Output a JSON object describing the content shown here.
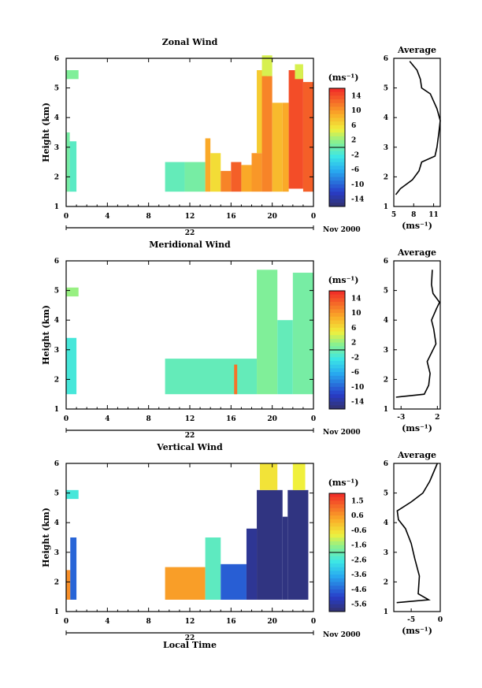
{
  "figure": {
    "x_axis_label": "Local Time",
    "date_label": "Nov 2000",
    "day_label": "22"
  },
  "chart_data": [
    {
      "type": "heatmap",
      "title": "Zonal Wind",
      "ylabel": "Height (km)",
      "ylim": [
        1,
        6
      ],
      "yticks": [
        "1",
        "2",
        "3",
        "4",
        "5",
        "6"
      ],
      "xlim": [
        0,
        24
      ],
      "xticks": [
        "0",
        "4",
        "8",
        "12",
        "16",
        "20",
        "0"
      ],
      "xlabel": "Local Time",
      "colorbar": {
        "label": "(ms⁻¹)",
        "min": -16,
        "max": 16,
        "ticks": [
          "14",
          "10",
          "6",
          "2",
          "-2",
          "-6",
          "-10",
          "-14"
        ]
      },
      "avg": {
        "title": "Average",
        "xlabel": "(ms⁻¹)",
        "xlim": [
          5,
          12
        ],
        "xticks": [
          "5",
          "8",
          "11"
        ],
        "profile": [
          [
            5.3,
            1.4
          ],
          [
            6.0,
            1.6
          ],
          [
            7.8,
            1.9
          ],
          [
            8.8,
            2.2
          ],
          [
            9.2,
            2.5
          ],
          [
            11.2,
            2.7
          ],
          [
            11.5,
            3.0
          ],
          [
            11.8,
            3.5
          ],
          [
            12.0,
            3.9
          ],
          [
            11.5,
            4.3
          ],
          [
            10.5,
            4.8
          ],
          [
            9.2,
            5.0
          ],
          [
            9.0,
            5.3
          ],
          [
            8.5,
            5.6
          ],
          [
            7.4,
            5.9
          ]
        ]
      },
      "blocks": [
        {
          "t0": 0.0,
          "t1": 0.35,
          "h0": 1.5,
          "h1": 3.5,
          "v": 0.5
        },
        {
          "t0": 0.35,
          "t1": 1.0,
          "h0": 1.5,
          "h1": 3.2,
          "v": -1
        },
        {
          "t0": 0.0,
          "t1": 1.2,
          "h0": 5.3,
          "h1": 5.6,
          "v": 1
        },
        {
          "t0": 9.6,
          "t1": 11.5,
          "h0": 1.5,
          "h1": 2.5,
          "v": -0.5
        },
        {
          "t0": 11.5,
          "t1": 13.5,
          "h0": 1.5,
          "h1": 2.5,
          "v": 0.5
        },
        {
          "t0": 13.5,
          "t1": 14.0,
          "h0": 1.5,
          "h1": 3.3,
          "v": 9
        },
        {
          "t0": 14.0,
          "t1": 15.0,
          "h0": 1.5,
          "h1": 2.8,
          "v": 6
        },
        {
          "t0": 15.0,
          "t1": 16.0,
          "h0": 1.5,
          "h1": 2.2,
          "v": 11
        },
        {
          "t0": 16.0,
          "t1": 17.0,
          "h0": 1.5,
          "h1": 2.5,
          "v": 13
        },
        {
          "t0": 17.0,
          "t1": 18.0,
          "h0": 1.5,
          "h1": 2.4,
          "v": 9
        },
        {
          "t0": 18.0,
          "t1": 19.0,
          "h0": 1.5,
          "h1": 2.8,
          "v": 10
        },
        {
          "t0": 18.5,
          "t1": 19.5,
          "h0": 2.8,
          "h1": 5.6,
          "v": 7
        },
        {
          "t0": 19.0,
          "t1": 20.0,
          "h0": 1.5,
          "h1": 5.4,
          "v": 11
        },
        {
          "t0": 19.0,
          "t1": 20.0,
          "h0": 5.4,
          "h1": 6.1,
          "v": 4
        },
        {
          "t0": 20.0,
          "t1": 21.0,
          "h0": 1.5,
          "h1": 4.5,
          "v": 8
        },
        {
          "t0": 21.0,
          "t1": 21.6,
          "h0": 1.5,
          "h1": 4.5,
          "v": 9
        },
        {
          "t0": 21.6,
          "t1": 23.0,
          "h0": 1.6,
          "h1": 5.6,
          "v": 14
        },
        {
          "t0": 22.2,
          "t1": 23.0,
          "h0": 5.3,
          "h1": 5.8,
          "v": 4
        },
        {
          "t0": 23.0,
          "t1": 24.0,
          "h0": 1.5,
          "h1": 5.2,
          "v": 13
        }
      ]
    },
    {
      "type": "heatmap",
      "title": "Meridional Wind",
      "ylabel": "Height (km)",
      "ylim": [
        1,
        6
      ],
      "yticks": [
        "1",
        "2",
        "3",
        "4",
        "5",
        "6"
      ],
      "xlim": [
        0,
        24
      ],
      "xticks": [
        "0",
        "4",
        "8",
        "12",
        "16",
        "20",
        "0"
      ],
      "xlabel": "Local Time",
      "colorbar": {
        "label": "(ms⁻¹)",
        "min": -16,
        "max": 16,
        "ticks": [
          "14",
          "10",
          "6",
          "2",
          "-2",
          "-6",
          "-10",
          "-14"
        ]
      },
      "avg": {
        "title": "Average",
        "xlabel": "(ms⁻¹)",
        "xlim": [
          -4,
          2.4
        ],
        "xticks": [
          "-3",
          "2"
        ],
        "profile": [
          [
            -3.7,
            1.4
          ],
          [
            0.2,
            1.5
          ],
          [
            0.8,
            1.8
          ],
          [
            1.0,
            2.2
          ],
          [
            0.6,
            2.6
          ],
          [
            1.2,
            2.9
          ],
          [
            1.8,
            3.2
          ],
          [
            1.5,
            3.7
          ],
          [
            1.2,
            4.0
          ],
          [
            1.9,
            4.4
          ],
          [
            2.3,
            4.6
          ],
          [
            1.4,
            4.9
          ],
          [
            1.2,
            5.2
          ],
          [
            1.3,
            5.7
          ]
        ]
      },
      "blocks": [
        {
          "t0": 0.0,
          "t1": 1.0,
          "h0": 1.5,
          "h1": 3.4,
          "v": -2
        },
        {
          "t0": 0.0,
          "t1": 1.2,
          "h0": 4.8,
          "h1": 5.1,
          "v": 2
        },
        {
          "t0": 9.6,
          "t1": 18.5,
          "h0": 1.5,
          "h1": 2.7,
          "v": -0.5
        },
        {
          "t0": 16.3,
          "t1": 16.6,
          "h0": 1.5,
          "h1": 2.5,
          "v": 12
        },
        {
          "t0": 18.5,
          "t1": 20.5,
          "h0": 1.5,
          "h1": 5.7,
          "v": 1
        },
        {
          "t0": 20.5,
          "t1": 22.0,
          "h0": 1.5,
          "h1": 4.0,
          "v": -0.5
        },
        {
          "t0": 22.0,
          "t1": 24.0,
          "h0": 1.5,
          "h1": 5.6,
          "v": 0.5
        }
      ]
    },
    {
      "type": "heatmap",
      "title": "Vertical Wind",
      "ylabel": "Height (km)",
      "ylim": [
        1,
        6
      ],
      "yticks": [
        "1",
        "2",
        "3",
        "4",
        "5",
        "6"
      ],
      "xlim": [
        0,
        24
      ],
      "xticks": [
        "0",
        "4",
        "8",
        "12",
        "16",
        "20",
        "0"
      ],
      "xlabel": "Local Time",
      "colorbar": {
        "label": "(ms⁻¹)",
        "min": -6,
        "max": 2,
        "ticks": [
          "1.5",
          "0.6",
          "-0.6",
          "-1.6",
          "-2.6",
          "-3.6",
          "-4.6",
          "-5.6"
        ]
      },
      "avg": {
        "title": "Average",
        "xlabel": "(ms⁻¹)",
        "xlim": [
          -8,
          0
        ],
        "xticks": [
          "-5",
          "0"
        ],
        "profile": [
          [
            -7.5,
            1.3
          ],
          [
            -2.0,
            1.4
          ],
          [
            -3.8,
            1.6
          ],
          [
            -3.6,
            2.2
          ],
          [
            -4.4,
            2.8
          ],
          [
            -5.0,
            3.3
          ],
          [
            -6.0,
            3.8
          ],
          [
            -7.2,
            4.1
          ],
          [
            -7.4,
            4.4
          ],
          [
            -5.0,
            4.7
          ],
          [
            -3.0,
            5.0
          ],
          [
            -1.8,
            5.4
          ],
          [
            -0.5,
            6.0
          ]
        ]
      },
      "blocks": [
        {
          "t0": 0.0,
          "t1": 0.4,
          "h0": 1.4,
          "h1": 2.4,
          "v": 0.6
        },
        {
          "t0": 0.4,
          "t1": 1.0,
          "h0": 1.4,
          "h1": 3.5,
          "v": -4.5
        },
        {
          "t0": 0.0,
          "t1": 1.2,
          "h0": 4.8,
          "h1": 5.1,
          "v": -2.5
        },
        {
          "t0": 9.6,
          "t1": 13.5,
          "h0": 1.4,
          "h1": 2.5,
          "v": 0.4
        },
        {
          "t0": 13.5,
          "t1": 15.0,
          "h0": 1.4,
          "h1": 3.5,
          "v": -2.2
        },
        {
          "t0": 15.0,
          "t1": 17.5,
          "h0": 1.4,
          "h1": 2.6,
          "v": -4.6
        },
        {
          "t0": 17.5,
          "t1": 18.5,
          "h0": 1.4,
          "h1": 3.8,
          "v": -5.6
        },
        {
          "t0": 18.5,
          "t1": 21.0,
          "h0": 1.4,
          "h1": 5.1,
          "v": -5.8
        },
        {
          "t0": 21.0,
          "t1": 21.5,
          "h0": 1.4,
          "h1": 4.2,
          "v": -5.8
        },
        {
          "t0": 21.5,
          "t1": 23.5,
          "h0": 1.4,
          "h1": 5.1,
          "v": -5.8
        },
        {
          "t0": 18.8,
          "t1": 20.5,
          "h0": 5.1,
          "h1": 6.0,
          "v": -0.6
        },
        {
          "t0": 22.0,
          "t1": 23.2,
          "h0": 5.1,
          "h1": 6.0,
          "v": -0.8
        }
      ]
    }
  ]
}
